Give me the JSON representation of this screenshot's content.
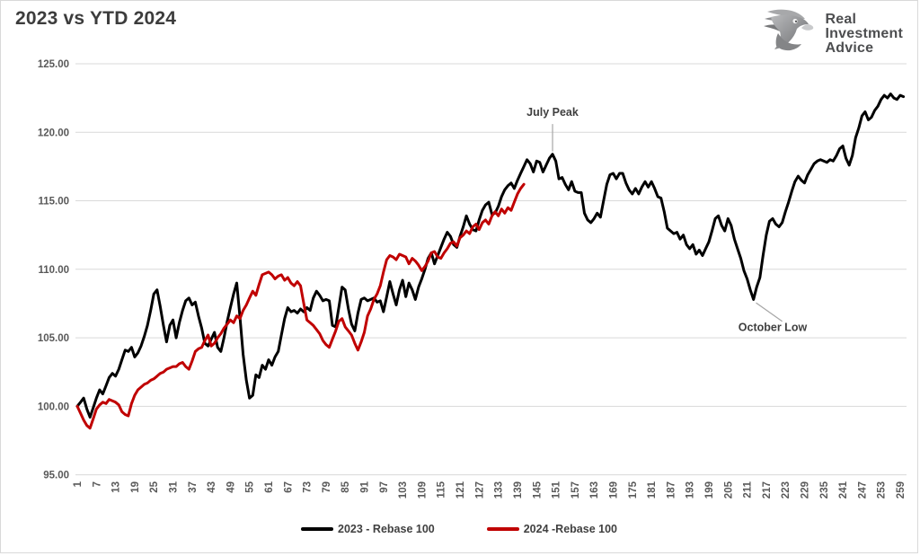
{
  "header": {
    "title": "2023 vs YTD 2024"
  },
  "logo": {
    "line1": "Real",
    "line2": "Investment",
    "line3": "Advice"
  },
  "chart_data": {
    "type": "line",
    "title": "2023 vs YTD 2024",
    "xlim": [
      1,
      260
    ],
    "ylim": [
      95,
      125
    ],
    "grid": true,
    "legend_position": "bottom-center",
    "grid_color": "#d9d9d9",
    "tick_color": "#595959",
    "annotation_color": "#3f3f3f",
    "leader_line_color": "#a6a6a6",
    "y_ticks": [
      125,
      120,
      115,
      110,
      105,
      100,
      95
    ],
    "x_ticks": [
      1,
      7,
      13,
      19,
      25,
      31,
      37,
      43,
      49,
      55,
      61,
      67,
      73,
      79,
      85,
      91,
      97,
      103,
      109,
      115,
      121,
      127,
      133,
      139,
      145,
      151,
      157,
      163,
      169,
      175,
      181,
      187,
      193,
      199,
      205,
      211,
      217,
      223,
      229,
      235,
      241,
      247,
      253,
      259
    ],
    "series": [
      {
        "name": "2023 - Rebase 100",
        "color": "#000000",
        "values": [
          100.0,
          100.3,
          100.6,
          99.8,
          99.2,
          99.9,
          100.6,
          101.2,
          100.9,
          101.5,
          102.1,
          102.4,
          102.2,
          102.7,
          103.4,
          104.1,
          104.0,
          104.3,
          103.6,
          103.9,
          104.4,
          105.1,
          105.9,
          107.0,
          108.2,
          108.5,
          107.3,
          105.9,
          104.7,
          105.9,
          106.3,
          105.0,
          106.1,
          107.0,
          107.7,
          107.9,
          107.4,
          107.6,
          106.6,
          105.7,
          104.6,
          104.4,
          104.9,
          105.4,
          104.3,
          104.0,
          105.0,
          106.2,
          107.2,
          108.2,
          109.0,
          106.5,
          103.8,
          101.9,
          100.6,
          100.8,
          102.3,
          102.1,
          103.0,
          102.7,
          103.4,
          103.0,
          103.6,
          104.0,
          105.2,
          106.4,
          107.2,
          106.9,
          107.0,
          106.8,
          107.1,
          106.9,
          107.2,
          107.0,
          107.9,
          108.4,
          108.1,
          107.7,
          107.8,
          107.7,
          105.9,
          105.8,
          107.2,
          108.7,
          108.5,
          107.1,
          106.0,
          105.5,
          106.8,
          107.8,
          107.9,
          107.7,
          107.8,
          107.9,
          107.6,
          107.7,
          106.9,
          108.0,
          109.1,
          108.2,
          107.4,
          108.5,
          109.2,
          108.0,
          109.0,
          108.5,
          107.8,
          108.7,
          109.3,
          110.0,
          110.8,
          111.2,
          110.4,
          111.0,
          111.6,
          112.2,
          112.7,
          112.4,
          111.8,
          111.6,
          112.4,
          113.1,
          113.9,
          113.3,
          112.9,
          112.8,
          113.6,
          114.3,
          114.7,
          114.9,
          114.0,
          114.1,
          114.6,
          115.3,
          115.8,
          116.1,
          116.3,
          115.9,
          116.5,
          117.0,
          117.5,
          118.0,
          117.7,
          117.1,
          117.9,
          117.8,
          117.1,
          117.6,
          118.1,
          118.4,
          117.9,
          116.6,
          116.7,
          116.2,
          115.8,
          116.4,
          115.7,
          115.6,
          115.6,
          114.1,
          113.6,
          113.4,
          113.7,
          114.1,
          113.8,
          115.0,
          116.2,
          116.9,
          117.0,
          116.6,
          117.0,
          117.0,
          116.3,
          115.8,
          115.5,
          115.9,
          115.5,
          116.0,
          116.4,
          116.0,
          116.4,
          115.9,
          115.3,
          115.2,
          114.2,
          113.0,
          112.8,
          112.6,
          112.7,
          112.2,
          112.5,
          111.8,
          111.5,
          111.8,
          111.1,
          111.4,
          111.0,
          111.5,
          112.0,
          112.8,
          113.7,
          113.9,
          113.2,
          112.8,
          113.7,
          113.2,
          112.2,
          111.5,
          110.8,
          109.9,
          109.3,
          108.5,
          107.8,
          108.7,
          109.4,
          111.0,
          112.5,
          113.5,
          113.7,
          113.3,
          113.1,
          113.4,
          114.2,
          114.9,
          115.7,
          116.4,
          116.8,
          116.5,
          116.3,
          116.9,
          117.3,
          117.7,
          117.9,
          118.0,
          117.9,
          117.8,
          118.0,
          117.9,
          118.3,
          118.8,
          119.0,
          118.1,
          117.6,
          118.3,
          119.6,
          120.3,
          121.2,
          121.5,
          120.9,
          121.1,
          121.6,
          121.9,
          122.4,
          122.7,
          122.5,
          122.8,
          122.5,
          122.4,
          122.7,
          122.6
        ]
      },
      {
        "name": "2024 -Rebase 100",
        "color": "#C00000",
        "values": [
          100.0,
          99.5,
          99.0,
          98.6,
          98.4,
          99.1,
          99.8,
          100.1,
          100.3,
          100.2,
          100.5,
          100.4,
          100.3,
          100.1,
          99.6,
          99.4,
          99.3,
          100.2,
          100.8,
          101.2,
          101.4,
          101.6,
          101.7,
          101.9,
          102.0,
          102.2,
          102.4,
          102.5,
          102.7,
          102.8,
          102.9,
          102.9,
          103.1,
          103.2,
          102.9,
          102.7,
          103.3,
          104.0,
          104.2,
          104.3,
          104.8,
          105.2,
          104.4,
          104.6,
          105.0,
          105.3,
          105.7,
          106.0,
          106.3,
          106.1,
          106.6,
          106.4,
          107.0,
          107.4,
          107.9,
          108.4,
          108.1,
          108.9,
          109.6,
          109.7,
          109.8,
          109.6,
          109.3,
          109.5,
          109.6,
          109.2,
          109.4,
          109.0,
          108.8,
          109.1,
          108.8,
          107.5,
          106.3,
          106.1,
          105.9,
          105.6,
          105.3,
          104.8,
          104.5,
          104.3,
          104.9,
          105.5,
          106.2,
          106.4,
          105.8,
          105.5,
          105.2,
          104.6,
          104.1,
          104.7,
          105.4,
          106.6,
          107.1,
          107.8,
          108.2,
          108.8,
          109.8,
          110.7,
          111.0,
          110.9,
          110.7,
          111.1,
          111.0,
          110.9,
          110.4,
          110.8,
          110.6,
          110.3,
          109.9,
          110.2,
          110.6,
          111.2,
          111.3,
          110.9,
          110.8,
          111.2,
          111.5,
          111.9,
          112.0,
          111.7,
          112.3,
          112.5,
          112.8,
          112.6,
          113.1,
          113.3,
          112.9,
          113.4,
          113.6,
          113.3,
          113.9,
          114.2,
          113.9,
          114.4,
          114.1,
          114.5,
          114.3,
          114.9,
          115.5,
          115.9,
          116.2
        ]
      }
    ],
    "annotations": [
      {
        "text": "July Peak",
        "x": 150,
        "y": 118.4,
        "line": [
          [
            150,
            118.6
          ],
          [
            150,
            120.6
          ]
        ],
        "label": {
          "x": 150,
          "y": 121.2,
          "anchor": "middle"
        }
      },
      {
        "text": "October Low",
        "x": 213,
        "y": 107.8,
        "line": [
          [
            213.8,
            107.55
          ],
          [
            222,
            106.2
          ]
        ],
        "label": {
          "x": 219,
          "y": 105.5,
          "anchor": "middle"
        }
      }
    ]
  }
}
